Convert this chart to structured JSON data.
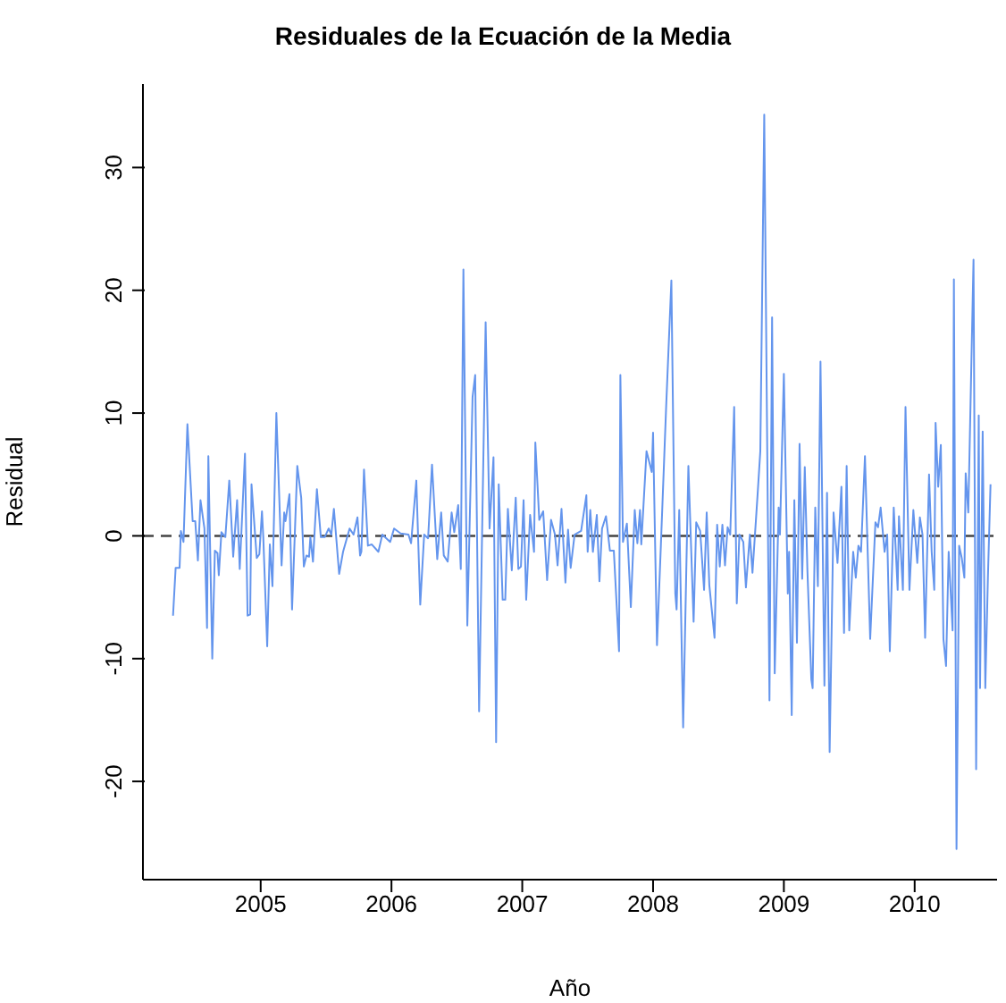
{
  "chart_data": {
    "type": "line",
    "title": "Residuales de la Ecuación de la Media",
    "xlabel": "Año",
    "ylabel": "Residual",
    "x": [
      2004.33,
      2004.35,
      2004.38,
      2004.39,
      2004.41,
      2004.44,
      2004.48,
      2004.5,
      2004.52,
      2004.54,
      2004.57,
      2004.59,
      2004.6,
      2004.63,
      2004.65,
      2004.67,
      2004.68,
      2004.7,
      2004.73,
      2004.76,
      2004.79,
      2004.82,
      2004.84,
      2004.88,
      2004.9,
      2004.92,
      2004.93,
      2004.97,
      2004.99,
      2005.01,
      2005.02,
      2005.05,
      2005.07,
      2005.09,
      2005.12,
      2005.16,
      2005.18,
      2005.19,
      2005.22,
      2005.24,
      2005.28,
      2005.31,
      2005.33,
      2005.35,
      2005.37,
      2005.38,
      2005.4,
      2005.43,
      2005.46,
      2005.49,
      2005.52,
      2005.54,
      2005.56,
      2005.6,
      2005.63,
      2005.68,
      2005.71,
      2005.74,
      2005.76,
      2005.77,
      2005.79,
      2005.82,
      2005.85,
      2005.9,
      2005.93,
      2005.99,
      2006.02,
      2006.07,
      2006.13,
      2006.15,
      2006.19,
      2006.22,
      2006.25,
      2006.28,
      2006.31,
      2006.35,
      2006.38,
      2006.4,
      2006.43,
      2006.46,
      2006.48,
      2006.51,
      2006.53,
      2006.55,
      2006.58,
      2006.62,
      2006.64,
      2006.67,
      2006.72,
      2006.75,
      2006.78,
      2006.8,
      2006.82,
      2006.85,
      2006.87,
      2006.89,
      2006.92,
      2006.95,
      2006.97,
      2006.99,
      2007.01,
      2007.03,
      2007.06,
      2007.09,
      2007.1,
      2007.13,
      2007.16,
      2007.19,
      2007.22,
      2007.25,
      2007.27,
      2007.3,
      2007.33,
      2007.35,
      2007.37,
      2007.4,
      2007.45,
      2007.49,
      2007.5,
      2007.52,
      2007.54,
      2007.57,
      2007.59,
      2007.61,
      2007.64,
      2007.67,
      2007.7,
      2007.74,
      2007.75,
      2007.77,
      2007.8,
      2007.83,
      2007.86,
      2007.88,
      2007.9,
      2007.91,
      2007.95,
      2007.99,
      2008.0,
      2008.03,
      2008.06,
      2008.1,
      2008.14,
      2008.17,
      2008.18,
      2008.2,
      2008.23,
      2008.27,
      2008.31,
      2008.33,
      2008.36,
      2008.39,
      2008.41,
      2008.43,
      2008.47,
      2008.49,
      2008.51,
      2008.53,
      2008.55,
      2008.57,
      2008.59,
      2008.62,
      2008.64,
      2008.66,
      2008.69,
      2008.71,
      2008.74,
      2008.76,
      2008.8,
      2008.82,
      2008.85,
      2008.89,
      2008.91,
      2008.93,
      2008.96,
      2008.97,
      2009.0,
      2009.03,
      2009.04,
      2009.06,
      2009.08,
      2009.1,
      2009.12,
      2009.14,
      2009.16,
      2009.18,
      2009.21,
      2009.22,
      2009.24,
      2009.26,
      2009.28,
      2009.31,
      2009.33,
      2009.35,
      2009.38,
      2009.41,
      2009.44,
      2009.46,
      2009.48,
      2009.5,
      2009.53,
      2009.55,
      2009.57,
      2009.59,
      2009.62,
      2009.66,
      2009.7,
      2009.72,
      2009.74,
      2009.77,
      2009.79,
      2009.81,
      2009.84,
      2009.87,
      2009.88,
      2009.91,
      2009.93,
      2009.96,
      2009.99,
      2010.02,
      2010.04,
      2010.06,
      2010.08,
      2010.11,
      2010.13,
      2010.15,
      2010.16,
      2010.18,
      2010.2,
      2010.22,
      2010.24,
      2010.26,
      2010.29,
      2010.3,
      2010.32,
      2010.34,
      2010.36,
      2010.38,
      2010.39,
      2010.41,
      2010.45,
      2010.47,
      2010.49,
      2010.5,
      2010.52,
      2010.54,
      2010.56,
      2010.58
    ],
    "series": [
      {
        "color": "#6495ed",
        "values": [
          -6.5,
          -2.6,
          -2.6,
          0.4,
          -0.5,
          9.1,
          1.2,
          1.2,
          -2.0,
          2.9,
          0.6,
          -7.5,
          6.5,
          -10.0,
          -1.2,
          -1.4,
          -3.2,
          0.3,
          -0.1,
          4.5,
          -1.7,
          2.9,
          -2.7,
          6.7,
          -6.5,
          -6.4,
          4.2,
          -1.8,
          -1.5,
          2.0,
          -0.1,
          -9.0,
          -0.7,
          -4.1,
          10.0,
          -2.4,
          1.9,
          1.2,
          3.4,
          -6.0,
          5.7,
          3.1,
          -2.5,
          -1.6,
          -1.7,
          -0.1,
          -2.1,
          3.8,
          -0.1,
          -0.1,
          0.6,
          0.1,
          2.2,
          -3.1,
          -1.3,
          0.6,
          0.1,
          1.5,
          -1.6,
          -1.3,
          5.4,
          -0.8,
          -0.7,
          -1.3,
          0.1,
          -0.5,
          0.6,
          0.2,
          0.1,
          -0.6,
          4.5,
          -5.6,
          0.1,
          -0.2,
          5.8,
          -1.9,
          1.9,
          -1.6,
          -2.1,
          1.9,
          0.3,
          2.5,
          -2.7,
          21.7,
          -7.3,
          11.3,
          13.1,
          -14.3,
          17.4,
          0.6,
          6.4,
          -16.8,
          4.2,
          -5.2,
          -5.2,
          2.2,
          -2.8,
          3.1,
          -2.7,
          -2.5,
          2.9,
          -5.2,
          1.7,
          -1.3,
          7.6,
          1.3,
          2.0,
          -3.6,
          1.3,
          0.1,
          -2.4,
          2.2,
          -3.8,
          0.5,
          -2.6,
          0.1,
          0.4,
          3.3,
          -1.3,
          2.1,
          -1.3,
          1.7,
          -3.7,
          0.6,
          1.6,
          -1.2,
          -1.2,
          -9.4,
          13.1,
          -0.5,
          1.0,
          -5.8,
          2.1,
          -0.6,
          2.1,
          -0.7,
          6.9,
          5.2,
          8.4,
          -8.9,
          -0.7,
          10.5,
          20.8,
          -4.7,
          -6.0,
          2.1,
          -15.6,
          5.7,
          -7.0,
          1.1,
          0.4,
          -4.4,
          1.9,
          -4.0,
          -8.3,
          0.9,
          -2.5,
          0.9,
          -2.4,
          0.7,
          0.1,
          10.5,
          -5.5,
          0.1,
          -0.5,
          -4.2,
          0.1,
          -3.0,
          3.5,
          6.9,
          34.3,
          -13.4,
          17.8,
          -11.2,
          2.3,
          0.1,
          13.2,
          -4.7,
          -1.3,
          -14.6,
          2.9,
          -8.7,
          7.5,
          -3.5,
          5.6,
          -2.8,
          -11.7,
          -12.4,
          2.3,
          -4.1,
          14.2,
          -12.2,
          3.5,
          -17.6,
          1.9,
          -2.2,
          4.0,
          -7.9,
          5.7,
          -7.7,
          -1.3,
          -3.4,
          -0.8,
          -1.3,
          6.5,
          -8.4,
          1.1,
          0.7,
          2.3,
          -1.3,
          0.1,
          -9.4,
          2.3,
          -4.4,
          1.6,
          -4.4,
          10.5,
          -4.4,
          2.1,
          -2.2,
          1.5,
          0.1,
          -8.3,
          5.0,
          -1.3,
          -4.4,
          9.2,
          4.0,
          7.4,
          -8.4,
          -10.6,
          -1.3,
          -7.7,
          20.9,
          -25.5,
          -0.8,
          -1.8,
          -3.4,
          5.1,
          1.9,
          22.5,
          -19.0,
          9.8,
          -12.4,
          8.5,
          -12.4,
          -3.4,
          4.2
        ]
      }
    ],
    "xlim": [
      2004.1,
      2010.63
    ],
    "xticks": [
      2005,
      2006,
      2007,
      2008,
      2009,
      2010
    ],
    "ylim": [
      -28,
      36.8
    ],
    "yticks": [
      -20,
      -10,
      0,
      10,
      20,
      30
    ],
    "ref_lines": [
      {
        "axis": "y",
        "value": 0,
        "color": "#444444",
        "line_style": "dashed"
      }
    ]
  }
}
